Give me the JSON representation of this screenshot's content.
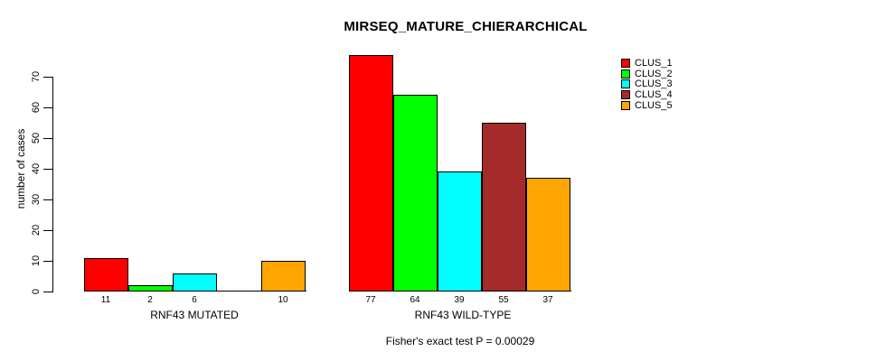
{
  "chart_data": {
    "type": "bar",
    "title": "MIRSEQ_MATURE_CHIERARCHICAL",
    "ylabel": "number of cases",
    "footnote": "Fisher's exact test P = 0.00029",
    "ylim": [
      0,
      70
    ],
    "yticks": [
      0,
      10,
      20,
      30,
      40,
      50,
      60,
      70
    ],
    "grid": false,
    "legend_position": "right-outside",
    "groups": [
      "RNF43 MUTATED",
      "RNF43 WILD-TYPE"
    ],
    "series": [
      {
        "name": "CLUS_1",
        "color": "#FF0000",
        "values": [
          11,
          77
        ]
      },
      {
        "name": "CLUS_2",
        "color": "#00FF00",
        "values": [
          2,
          64
        ]
      },
      {
        "name": "CLUS_3",
        "color": "#00FFFF",
        "values": [
          6,
          39
        ]
      },
      {
        "name": "CLUS_4",
        "color": "#A52A2A",
        "values": [
          0,
          55
        ]
      },
      {
        "name": "CLUS_5",
        "color": "#FFA500",
        "values": [
          10,
          37
        ]
      }
    ],
    "bar_value_labels": [
      [
        "11",
        "2",
        "6",
        "",
        "10"
      ],
      [
        "77",
        "64",
        "39",
        "55",
        "37"
      ]
    ],
    "axis_color": "#000000",
    "bar_border_color": "#000000",
    "background_color": "#FFFFFF"
  }
}
